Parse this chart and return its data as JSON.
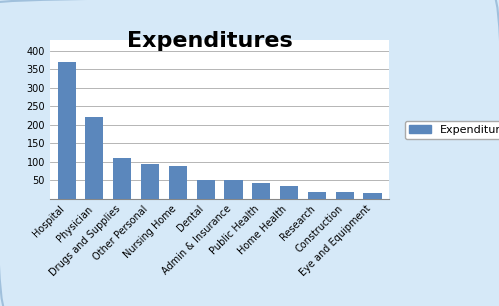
{
  "title": "Expenditures",
  "categories": [
    "Hospital",
    "Physician",
    "Drugs and Supplies",
    "Other Personal",
    "Nursing Home",
    "Dental",
    "Admin & Insurance",
    "Public Health",
    "Home Health",
    "Research",
    "Construction",
    "Eye and Equipment"
  ],
  "values": [
    370,
    220,
    110,
    95,
    88,
    52,
    50,
    42,
    35,
    18,
    18,
    15
  ],
  "bar_color": "#5B87BC",
  "legend_label": "Expenditure",
  "ylim": [
    0,
    430
  ],
  "yticks": [
    0,
    50,
    100,
    150,
    200,
    250,
    300,
    350,
    400
  ],
  "plot_bg": "#FFFFFF",
  "fig_bg": "#D6E9F8",
  "grid_color": "#AAAAAA",
  "title_fontsize": 16,
  "tick_fontsize": 7,
  "legend_fontsize": 8
}
